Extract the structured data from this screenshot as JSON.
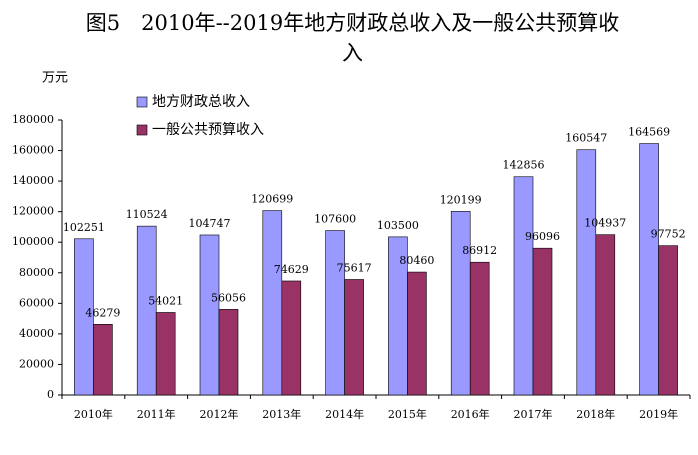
{
  "chart_data": {
    "type": "bar",
    "title": "图5　2010年--2019年地方财政总收入及一般公共预算收入",
    "y_label": "万元",
    "categories": [
      "2010年",
      "2011年",
      "2012年",
      "2013年",
      "2014年",
      "2015年",
      "2016年",
      "2017年",
      "2018年",
      "2019年"
    ],
    "series": [
      {
        "name": "地方财政总收入",
        "color": "#9999ff",
        "values": [
          102251,
          110524,
          104747,
          120699,
          107600,
          103500,
          120199,
          142856,
          160547,
          164569
        ]
      },
      {
        "name": "一般公共预算收入",
        "color": "#993366",
        "values": [
          46279,
          54021,
          56056,
          74629,
          75617,
          80460,
          86912,
          96096,
          104937,
          97752
        ]
      }
    ],
    "ylim": [
      0,
      180000
    ],
    "yticks": [
      0,
      20000,
      40000,
      60000,
      80000,
      100000,
      120000,
      140000,
      160000,
      180000
    ],
    "grid": false,
    "legend": "top-left"
  }
}
